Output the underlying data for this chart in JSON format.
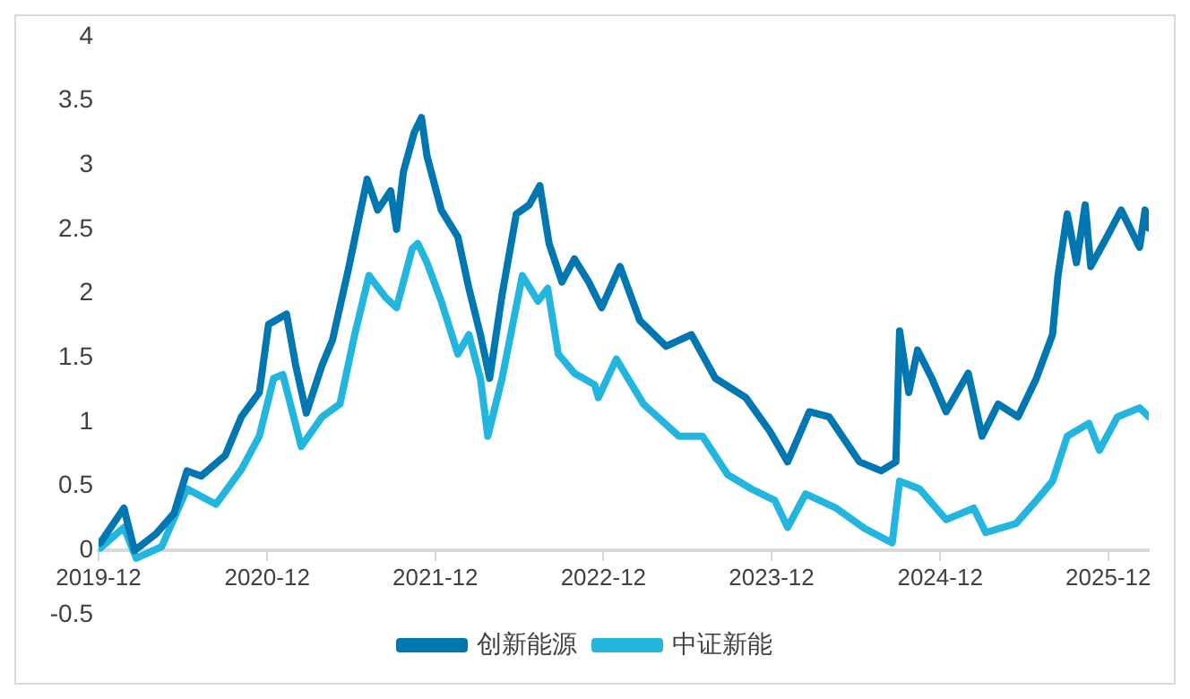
{
  "chart_data": {
    "type": "line",
    "xlim": [
      "2019-12-01",
      "2026-02-27"
    ],
    "ylim": [
      -0.5,
      4
    ],
    "xticks": [
      "2019-12",
      "2020-12",
      "2021-12",
      "2022-12",
      "2023-12",
      "2024-12",
      "2025-12"
    ],
    "yticks": [
      -0.5,
      0,
      0.5,
      1,
      1.5,
      2,
      2.5,
      3,
      3.5,
      4
    ],
    "legend": "bottom",
    "marker": "none",
    "line_style": "solid",
    "series": [
      {
        "name": "创新能源",
        "color": "#0077b0",
        "x": [
          "2019-12-05",
          "2020-01-25",
          "2020-02-17",
          "2020-04-04",
          "2020-05-13",
          "2020-06-10",
          "2020-07-11",
          "2020-09-01",
          "2020-10-06",
          "2020-11-14",
          "2020-12-04",
          "2021-01-12",
          "2021-02-01",
          "2021-02-24",
          "2021-03-30",
          "2021-04-22",
          "2021-05-27",
          "2021-07-06",
          "2021-07-29",
          "2021-08-26",
          "2021-09-08",
          "2021-09-23",
          "2021-10-16",
          "2021-11-01",
          "2021-11-13",
          "2021-12-14",
          "2022-01-19",
          "2022-02-12",
          "2022-03-09",
          "2022-03-29",
          "2022-04-25",
          "2022-05-26",
          "2022-06-23",
          "2022-07-16",
          "2022-08-05",
          "2022-09-02",
          "2022-09-29",
          "2022-10-30",
          "2022-11-27",
          "2023-01-06",
          "2023-02-18",
          "2023-04-16",
          "2023-06-10",
          "2023-08-01",
          "2023-10-06",
          "2023-11-27",
          "2024-01-05",
          "2024-02-21",
          "2024-04-04",
          "2024-06-09",
          "2024-07-26",
          "2024-08-27",
          "2024-09-04",
          "2024-09-24",
          "2024-10-13",
          "2024-11-13",
          "2024-12-14",
          "2025-01-31",
          "2025-03-02",
          "2025-04-06",
          "2025-05-19",
          "2025-06-28",
          "2025-08-02",
          "2025-08-14",
          "2025-09-03",
          "2025-09-23",
          "2025-10-12",
          "2025-10-24",
          "2025-11-28",
          "2025-12-29",
          "2026-02-07",
          "2026-02-19",
          "2026-02-27"
        ],
        "values": [
          0.06,
          0.33,
          0.0,
          0.13,
          0.29,
          0.62,
          0.58,
          0.74,
          1.04,
          1.23,
          1.76,
          1.84,
          1.44,
          1.07,
          1.44,
          1.64,
          2.2,
          2.89,
          2.65,
          2.8,
          2.5,
          2.95,
          3.25,
          3.37,
          3.07,
          2.65,
          2.44,
          2.04,
          1.68,
          1.34,
          1.99,
          2.62,
          2.69,
          2.84,
          2.39,
          2.09,
          2.27,
          2.09,
          1.89,
          2.21,
          1.79,
          1.59,
          1.68,
          1.34,
          1.19,
          0.93,
          0.69,
          1.08,
          1.04,
          0.69,
          0.62,
          0.69,
          1.71,
          1.23,
          1.56,
          1.34,
          1.08,
          1.38,
          0.89,
          1.14,
          1.04,
          1.34,
          1.68,
          2.14,
          2.62,
          2.24,
          2.69,
          2.21,
          2.44,
          2.65,
          2.36,
          2.65,
          2.51
        ]
      },
      {
        "name": "中证新能",
        "color": "#22b5dd",
        "x": [
          "2019-12-05",
          "2020-01-25",
          "2020-02-21",
          "2020-04-16",
          "2020-06-10",
          "2020-08-12",
          "2020-10-06",
          "2020-11-14",
          "2020-12-15",
          "2021-01-04",
          "2021-02-13",
          "2021-03-30",
          "2021-05-08",
          "2021-06-09",
          "2021-07-10",
          "2021-08-15",
          "2021-09-08",
          "2021-10-12",
          "2021-10-24",
          "2021-11-13",
          "2021-12-14",
          "2022-01-19",
          "2022-02-12",
          "2022-03-09",
          "2022-03-25",
          "2022-04-25",
          "2022-06-08",
          "2022-07-12",
          "2022-08-02",
          "2022-08-25",
          "2022-09-29",
          "2022-11-12",
          "2022-11-20",
          "2022-12-29",
          "2023-02-26",
          "2023-05-14",
          "2023-07-04",
          "2023-08-28",
          "2023-10-18",
          "2023-12-08",
          "2024-01-05",
          "2024-02-13",
          "2024-04-19",
          "2024-06-21",
          "2024-08-19",
          "2024-09-04",
          "2024-10-17",
          "2024-12-14",
          "2025-02-12",
          "2025-03-10",
          "2025-05-15",
          "2025-06-28",
          "2025-08-02",
          "2025-09-03",
          "2025-10-20",
          "2025-11-12",
          "2025-12-21",
          "2026-02-07",
          "2026-02-27"
        ],
        "values": [
          0.02,
          0.18,
          -0.06,
          0.03,
          0.48,
          0.36,
          0.63,
          0.89,
          1.34,
          1.37,
          0.81,
          1.04,
          1.14,
          1.68,
          2.14,
          1.97,
          1.89,
          2.35,
          2.39,
          2.24,
          1.94,
          1.53,
          1.68,
          1.34,
          0.89,
          1.34,
          2.14,
          1.94,
          2.04,
          1.53,
          1.38,
          1.29,
          1.19,
          1.49,
          1.14,
          0.89,
          0.89,
          0.59,
          0.48,
          0.39,
          0.18,
          0.44,
          0.33,
          0.17,
          0.06,
          0.54,
          0.48,
          0.24,
          0.33,
          0.14,
          0.21,
          0.39,
          0.54,
          0.89,
          0.99,
          0.78,
          1.04,
          1.11,
          1.04
        ]
      }
    ]
  }
}
